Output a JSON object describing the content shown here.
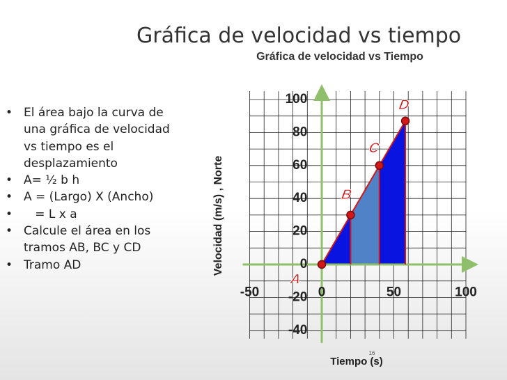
{
  "slide": {
    "title": "Gráfica de velocidad vs tiempo",
    "bullets": [
      "El área bajo la curva de una gráfica de velocidad vs tiempo es el desplazamiento",
      "A= ½ b h",
      "A = (Largo) X (Ancho)",
      "   = L x a",
      "Calcule el área en los tramos AB, BC y CD",
      "Tramo AD"
    ],
    "page_number": "16"
  },
  "chart_data": {
    "type": "line",
    "title": "Gráfica de velocidad vs Tiempo",
    "x_label": "Tiempo (s)",
    "y_label": "Velocidad (m/s) , Norte",
    "x": [
      0,
      20,
      40,
      58
    ],
    "values": [
      0,
      30,
      60,
      87
    ],
    "point_labels": [
      "A",
      "B",
      "C",
      "D"
    ],
    "color": "#d01818",
    "fill_color": "#0a14e0",
    "highlight_color": "#4f82c6",
    "xlim": [
      -55,
      105
    ],
    "ylim": [
      -50,
      105
    ],
    "xticks": [
      -50,
      0,
      50,
      100
    ],
    "yticks": [
      -40,
      -20,
      0,
      20,
      40,
      60,
      80,
      100
    ],
    "xgrid": [
      -50,
      -40,
      -30,
      -20,
      -10,
      0,
      10,
      20,
      30,
      40,
      50,
      60,
      70,
      80,
      90,
      100
    ],
    "ygrid": [
      -40,
      -30,
      -20,
      -10,
      0,
      10,
      20,
      30,
      40,
      50,
      60,
      70,
      80,
      90,
      100
    ],
    "grid": true
  }
}
